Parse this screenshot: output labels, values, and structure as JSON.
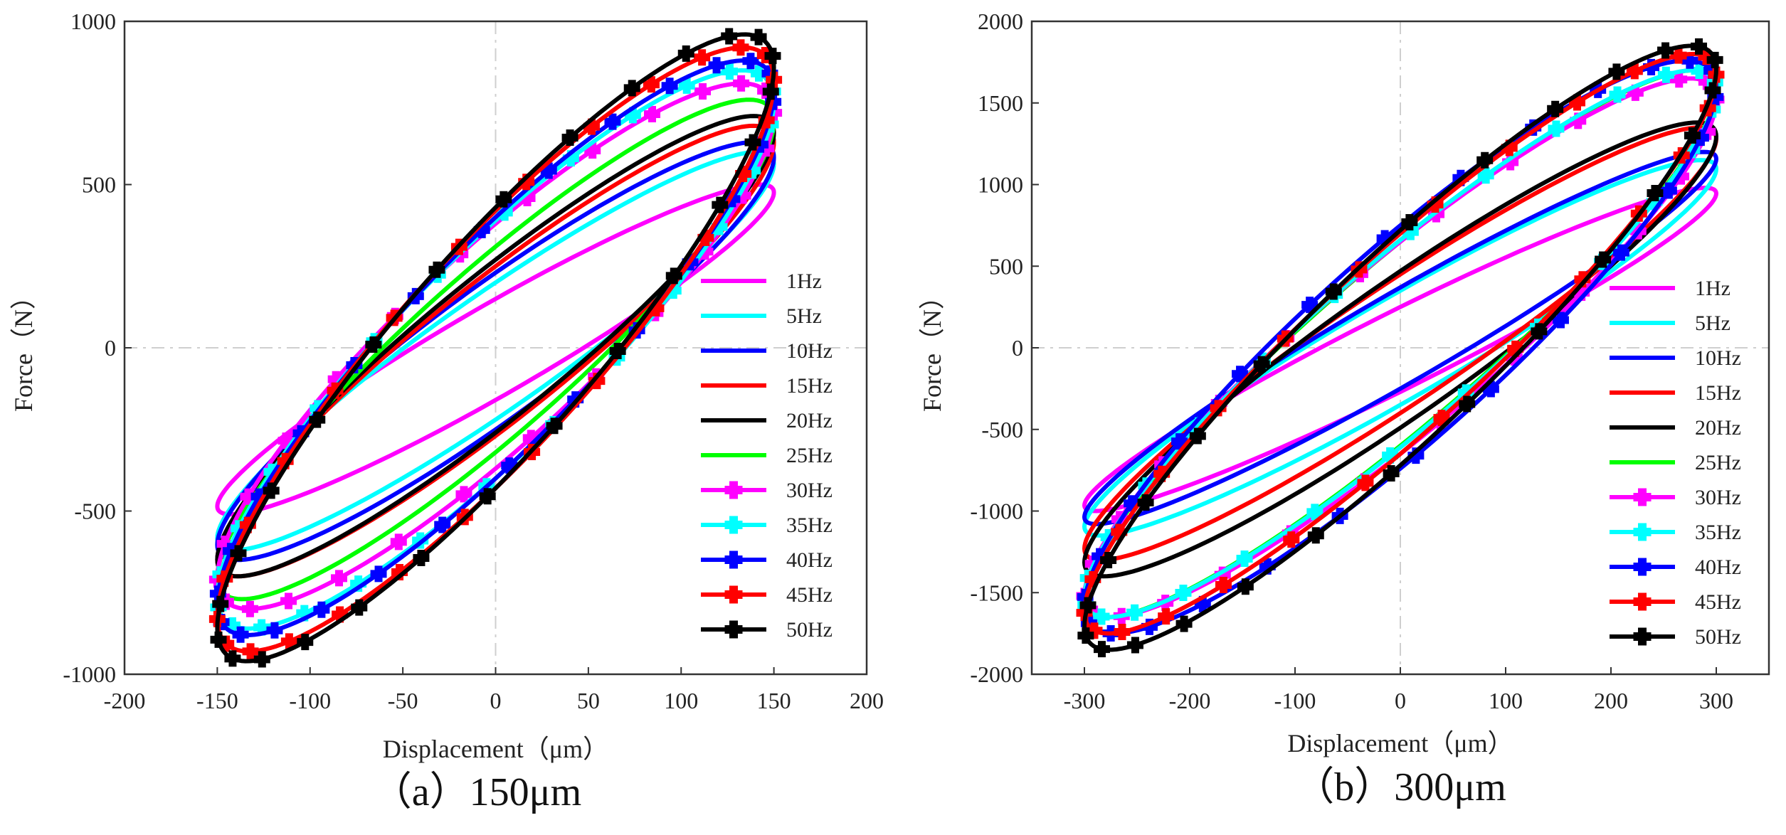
{
  "chart_data": [
    {
      "type": "line",
      "panel": "a",
      "caption": "（a）150μm",
      "xlabel": "Displacement（μm）",
      "ylabel": "Force（N）",
      "xlim": [
        -200,
        200
      ],
      "ylim": [
        -1000,
        1000
      ],
      "xticks": [
        "-200",
        "-150",
        "-100",
        "-50",
        "0",
        "50",
        "100",
        "150",
        "200"
      ],
      "yticks": [
        "-1000",
        "-500",
        "0",
        "500",
        "1000"
      ],
      "amplitude": 150,
      "legend_position": "right",
      "series": [
        {
          "name": "1Hz",
          "color": "#ff00ff",
          "marker": false,
          "fmax": 500,
          "fmin": -510,
          "f0": 150
        },
        {
          "name": "5Hz",
          "color": "#00ffff",
          "marker": false,
          "fmax": 600,
          "fmin": -620,
          "f0": 200
        },
        {
          "name": "10Hz",
          "color": "#0000ff",
          "marker": false,
          "fmax": 630,
          "fmin": -650,
          "f0": 230
        },
        {
          "name": "15Hz",
          "color": "#ff0000",
          "marker": false,
          "fmax": 680,
          "fmin": -700,
          "f0": 250
        },
        {
          "name": "20Hz",
          "color": "#000000",
          "marker": false,
          "fmax": 710,
          "fmin": -700,
          "f0": 270
        },
        {
          "name": "25Hz",
          "color": "#00ff00",
          "marker": false,
          "fmax": 760,
          "fmin": -770,
          "f0": 310
        },
        {
          "name": "30Hz",
          "color": "#ff00ff",
          "marker": true,
          "fmax": 810,
          "fmin": -800,
          "f0": 380
        },
        {
          "name": "35Hz",
          "color": "#00ffff",
          "marker": true,
          "fmax": 850,
          "fmin": -860,
          "f0": 390
        },
        {
          "name": "40Hz",
          "color": "#0000ff",
          "marker": true,
          "fmax": 880,
          "fmin": -880,
          "f0": 400
        },
        {
          "name": "45Hz",
          "color": "#ff0000",
          "marker": true,
          "fmax": 920,
          "fmin": -930,
          "f0": 420
        },
        {
          "name": "50Hz",
          "color": "#000000",
          "marker": true,
          "fmax": 960,
          "fmin": -960,
          "f0": 430
        }
      ]
    },
    {
      "type": "line",
      "panel": "b",
      "caption": "（b）300μm",
      "xlabel": "Displacement（μm）",
      "ylabel": "Force（N）",
      "xlim": [
        -350,
        350
      ],
      "ylim": [
        -2000,
        2000
      ],
      "xticks": [
        "-300",
        "-200",
        "-100",
        "0",
        "100",
        "200",
        "300"
      ],
      "yticks": [
        "-2000",
        "-1500",
        "-1000",
        "-500",
        "0",
        "500",
        "1000",
        "1500",
        "2000"
      ],
      "amplitude": 300,
      "legend_position": "right",
      "series": [
        {
          "name": "1Hz",
          "color": "#ff00ff",
          "marker": false,
          "fmax": 980,
          "fmin": -1000,
          "f0": 250
        },
        {
          "name": "5Hz",
          "color": "#00ffff",
          "marker": false,
          "fmax": 1150,
          "fmin": -1150,
          "f0": 350
        },
        {
          "name": "10Hz",
          "color": "#0000ff",
          "marker": false,
          "fmax": 1200,
          "fmin": -1080,
          "f0": 370
        },
        {
          "name": "15Hz",
          "color": "#ff0000",
          "marker": false,
          "fmax": 1350,
          "fmin": -1300,
          "f0": 450
        },
        {
          "name": "20Hz",
          "color": "#000000",
          "marker": false,
          "fmax": 1380,
          "fmin": -1400,
          "f0": 470
        },
        {
          "name": "25Hz",
          "color": "#00ff00",
          "marker": false,
          "fmax": 1700,
          "fmin": -1650,
          "f0": 650
        },
        {
          "name": "30Hz",
          "color": "#ff00ff",
          "marker": true,
          "fmax": 1650,
          "fmin": -1650,
          "f0": 650
        },
        {
          "name": "35Hz",
          "color": "#00ffff",
          "marker": true,
          "fmax": 1700,
          "fmin": -1650,
          "f0": 660
        },
        {
          "name": "40Hz",
          "color": "#0000ff",
          "marker": true,
          "fmax": 1760,
          "fmin": -1750,
          "f0": 750
        },
        {
          "name": "45Hz",
          "color": "#ff0000",
          "marker": true,
          "fmax": 1800,
          "fmin": -1750,
          "f0": 700
        },
        {
          "name": "50Hz",
          "color": "#000000",
          "marker": true,
          "fmax": 1850,
          "fmin": -1850,
          "f0": 720
        }
      ]
    }
  ]
}
